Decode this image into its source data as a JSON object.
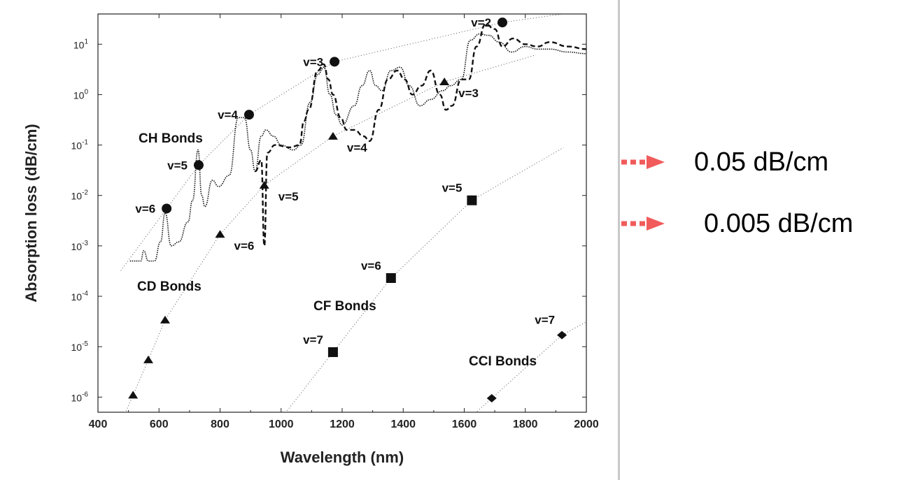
{
  "chart_data": {
    "type": "line",
    "xlabel": "Wavelength (nm)",
    "ylabel": "Absorption loss (dB/cm)",
    "xlim": [
      400,
      2000
    ],
    "ylim_log10": [
      -6.3,
      1.6
    ],
    "y_scale": "log",
    "x_ticks": [
      400,
      600,
      800,
      1000,
      1200,
      1400,
      1600,
      1800,
      2000
    ],
    "x_tick_labels": [
      "400",
      "600",
      "800",
      "1000",
      "1200",
      "1400",
      "1600",
      "1800",
      "2000"
    ],
    "y_tick_exponents": [
      1,
      0,
      -1,
      -2,
      -3,
      -4,
      -5,
      -6
    ],
    "y_tick_base": "10",
    "grid": false,
    "series": [
      {
        "label": "CH Bonds",
        "marker": "circle",
        "points": [
          {
            "x": 625,
            "y": 0.0055,
            "text": "v=6"
          },
          {
            "x": 730,
            "y": 0.04,
            "text": "v=5"
          },
          {
            "x": 895,
            "y": 0.4,
            "text": "v=4"
          },
          {
            "x": 1175,
            "y": 4.5,
            "text": "v=3"
          },
          {
            "x": 1725,
            "y": 27,
            "text": "v=2"
          }
        ]
      },
      {
        "label": "CD Bonds",
        "marker": "triangle",
        "points": [
          {
            "x": 515,
            "y": 1.1e-06,
            "text": ""
          },
          {
            "x": 565,
            "y": 5.5e-06,
            "text": ""
          },
          {
            "x": 620,
            "y": 3.4e-05,
            "text": ""
          },
          {
            "x": 800,
            "y": 0.0017,
            "text": "v=6"
          },
          {
            "x": 945,
            "y": 0.016,
            "text": "v=5"
          },
          {
            "x": 1170,
            "y": 0.15,
            "text": "v=4"
          },
          {
            "x": 1535,
            "y": 1.8,
            "text": "v=3"
          }
        ]
      },
      {
        "label": "CF Bonds",
        "marker": "square",
        "points": [
          {
            "x": 1170,
            "y": 7.8e-06,
            "text": "v=7"
          },
          {
            "x": 1360,
            "y": 0.00023,
            "text": "v=6"
          },
          {
            "x": 1625,
            "y": 0.008,
            "text": "v=5"
          }
        ]
      },
      {
        "label": "CCl Bonds",
        "marker": "diamond",
        "points": [
          {
            "x": 1690,
            "y": 9.5e-07,
            "text": ""
          },
          {
            "x": 1920,
            "y": 1.7e-05,
            "text": "v=7"
          }
        ]
      }
    ],
    "series_labels_display": {
      "CH Bonds": "CH Bonds",
      "CD Bonds": "CD Bonds",
      "CF Bonds": "CF Bonds",
      "CCl Bonds": "CCI Bonds"
    },
    "measured_curves": [
      {
        "style": "dotted",
        "points": [
          [
            505,
            0.0005
          ],
          [
            540,
            0.0005
          ],
          [
            550,
            0.0008
          ],
          [
            565,
            0.0005
          ],
          [
            585,
            0.0005
          ],
          [
            605,
            0.0012
          ],
          [
            620,
            0.0045
          ],
          [
            640,
            0.001
          ],
          [
            665,
            0.0012
          ],
          [
            695,
            0.003
          ],
          [
            710,
            0.008
          ],
          [
            728,
            0.08
          ],
          [
            740,
            0.01
          ],
          [
            750,
            0.006
          ],
          [
            775,
            0.02
          ],
          [
            795,
            0.015
          ],
          [
            830,
            0.025
          ],
          [
            860,
            0.35
          ],
          [
            880,
            0.35
          ],
          [
            900,
            0.08
          ],
          [
            915,
            0.03
          ],
          [
            935,
            0.15
          ],
          [
            950,
            0.2
          ],
          [
            975,
            0.15
          ],
          [
            1000,
            0.1
          ],
          [
            1040,
            0.08
          ],
          [
            1065,
            0.1
          ],
          [
            1095,
            0.7
          ],
          [
            1120,
            2.5
          ],
          [
            1140,
            3.5
          ],
          [
            1160,
            1
          ],
          [
            1180,
            0.4
          ],
          [
            1200,
            0.25
          ],
          [
            1240,
            0.6
          ],
          [
            1265,
            1.5
          ],
          [
            1290,
            3
          ],
          [
            1310,
            1.5
          ],
          [
            1330,
            1.2
          ],
          [
            1360,
            3
          ],
          [
            1390,
            3.5
          ],
          [
            1420,
            1.5
          ],
          [
            1455,
            0.6
          ],
          [
            1490,
            0.8
          ],
          [
            1530,
            1.2
          ],
          [
            1555,
            1.5
          ],
          [
            1590,
            2
          ],
          [
            1620,
            12
          ],
          [
            1650,
            16
          ],
          [
            1680,
            15
          ],
          [
            1715,
            11
          ],
          [
            1755,
            7
          ],
          [
            1800,
            9
          ],
          [
            1840,
            8
          ],
          [
            1880,
            8
          ],
          [
            1940,
            7
          ],
          [
            2000,
            6.5
          ]
        ]
      },
      {
        "style": "dashed",
        "points": [
          [
            915,
            0.03
          ],
          [
            935,
            0.05
          ],
          [
            945,
            0.001
          ],
          [
            955,
            0.07
          ],
          [
            980,
            0.1
          ],
          [
            1030,
            0.09
          ],
          [
            1060,
            0.1
          ],
          [
            1075,
            0.3
          ],
          [
            1090,
            0.5
          ],
          [
            1120,
            3
          ],
          [
            1140,
            4
          ],
          [
            1155,
            2
          ],
          [
            1170,
            1
          ],
          [
            1195,
            0.35
          ],
          [
            1215,
            0.2
          ],
          [
            1240,
            0.2
          ],
          [
            1270,
            0.15
          ],
          [
            1290,
            0.12
          ],
          [
            1320,
            0.5
          ],
          [
            1350,
            2
          ],
          [
            1380,
            3
          ],
          [
            1405,
            2
          ],
          [
            1430,
            1
          ],
          [
            1460,
            1.5
          ],
          [
            1490,
            3
          ],
          [
            1520,
            1
          ],
          [
            1540,
            0.5
          ],
          [
            1560,
            0.6
          ],
          [
            1590,
            2
          ],
          [
            1615,
            2
          ],
          [
            1640,
            9
          ],
          [
            1670,
            25
          ],
          [
            1700,
            20
          ],
          [
            1725,
            9
          ],
          [
            1760,
            13
          ],
          [
            1800,
            10
          ],
          [
            1840,
            9
          ],
          [
            1880,
            11
          ],
          [
            1940,
            9
          ],
          [
            2000,
            8
          ]
        ]
      }
    ],
    "annotations": [
      {
        "text": "0.05 dB/cm",
        "y": 0.05,
        "arrow_color": "#f15b5b"
      },
      {
        "text": "0.005 dB/cm",
        "y": 0.005,
        "arrow_color": "#f15b5b"
      }
    ]
  }
}
